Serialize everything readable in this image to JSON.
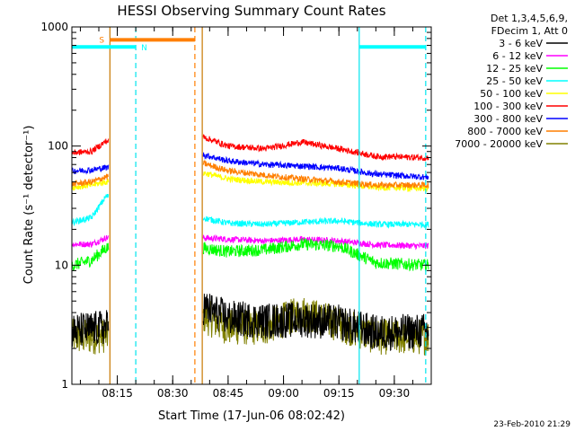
{
  "chart_data": {
    "type": "line",
    "title": "HESSI Observing Summary Count Rates",
    "xlabel": "Start Time (17-Jun-06 08:02:42)",
    "ylabel": "Count Rate (s⁻¹ detector⁻¹)",
    "y_scale": "log",
    "ylim": [
      1,
      1000
    ],
    "xlim": [
      "08:02:42",
      "09:40:00"
    ],
    "x_ticks": [
      "08:15",
      "08:30",
      "08:45",
      "09:00",
      "09:15",
      "09:30"
    ],
    "y_ticks": [
      "1",
      "10",
      "100",
      "1000"
    ],
    "grid": false,
    "legend_placement": "right",
    "legend_header": [
      "Det 1,3,4,5,6,9,",
      "FDecim 1, Att 0"
    ],
    "footer": "23-Feb-2010 21:29",
    "annotations": [
      {
        "text": "S",
        "color": "#ff7f00"
      },
      {
        "text": "N",
        "color": "#00ffff"
      }
    ],
    "markers": {
      "solid_orange_lines": [
        "08:13:00",
        "08:38:00"
      ],
      "dashed_orange_line": "08:36:00",
      "solid_cyan_line": "09:20:30",
      "dashed_cyan_lines": [
        "08:20:00",
        "09:38:30"
      ],
      "saa_bar": {
        "start": "08:13:00",
        "end": "08:36:00",
        "level": 780
      },
      "night_bars": [
        {
          "start": "08:02:42",
          "end": "08:20:00",
          "level": 680
        },
        {
          "start": "09:20:30",
          "end": "09:38:30",
          "level": 680
        }
      ]
    },
    "series": [
      {
        "name": "3 - 6 keV",
        "color": "#000000",
        "x": [
          "08:03",
          "08:08",
          "08:12",
          "08:38",
          "08:45",
          "08:55",
          "09:05",
          "09:15",
          "09:25",
          "09:38"
        ],
        "values": [
          2.8,
          2.9,
          3.0,
          4.5,
          3.6,
          3.4,
          3.5,
          3.3,
          2.7,
          2.8
        ]
      },
      {
        "name": "6 - 12 keV",
        "color": "#ff00ff",
        "x": [
          "08:03",
          "08:08",
          "08:12",
          "08:38",
          "08:45",
          "08:55",
          "09:05",
          "09:15",
          "09:25",
          "09:38"
        ],
        "values": [
          15,
          15,
          17,
          17,
          16.5,
          16,
          16.5,
          16,
          14.8,
          14.5
        ]
      },
      {
        "name": "12 - 25 keV",
        "color": "#00ff00",
        "x": [
          "08:03",
          "08:08",
          "08:12",
          "08:38",
          "08:45",
          "08:55",
          "09:05",
          "09:15",
          "09:25",
          "09:38"
        ],
        "values": [
          10,
          11,
          14,
          14,
          13,
          13.5,
          15,
          14.5,
          10.5,
          10
        ]
      },
      {
        "name": "25 - 50 keV",
        "color": "#00ffff",
        "x": [
          "08:03",
          "08:08",
          "08:12",
          "08:38",
          "08:45",
          "08:55",
          "09:05",
          "09:15",
          "09:25",
          "09:38"
        ],
        "values": [
          23,
          25,
          38,
          25,
          22.5,
          22,
          23,
          23.5,
          22,
          22
        ]
      },
      {
        "name": "50 - 100 keV",
        "color": "#ffff00",
        "x": [
          "08:03",
          "08:08",
          "08:12",
          "08:38",
          "08:45",
          "08:55",
          "09:05",
          "09:15",
          "09:25",
          "09:38"
        ],
        "values": [
          45,
          47,
          50,
          60,
          53,
          50,
          49,
          48,
          45,
          44
        ]
      },
      {
        "name": "100 - 300 keV",
        "color": "#ff0000",
        "x": [
          "08:03",
          "08:08",
          "08:12",
          "08:38",
          "08:45",
          "08:55",
          "09:05",
          "09:15",
          "09:25",
          "09:38"
        ],
        "values": [
          88,
          90,
          110,
          120,
          100,
          95,
          108,
          95,
          82,
          80
        ]
      },
      {
        "name": "300 - 800 keV",
        "color": "#0000ff",
        "x": [
          "08:03",
          "08:08",
          "08:12",
          "08:38",
          "08:45",
          "08:55",
          "09:05",
          "09:15",
          "09:25",
          "09:38"
        ],
        "values": [
          62,
          63,
          66,
          85,
          75,
          70,
          68,
          65,
          58,
          55
        ]
      },
      {
        "name": "800 - 7000 keV",
        "color": "#ff7f00",
        "x": [
          "08:03",
          "08:08",
          "08:12",
          "08:38",
          "08:45",
          "08:55",
          "09:05",
          "09:15",
          "09:25",
          "09:38"
        ],
        "values": [
          48,
          50,
          55,
          72,
          62,
          57,
          53,
          50,
          47,
          47
        ]
      },
      {
        "name": "7000 - 20000 keV",
        "color": "#808000",
        "x": [
          "08:03",
          "08:08",
          "08:12",
          "08:38",
          "08:45",
          "08:55",
          "09:05",
          "09:15",
          "09:25",
          "09:38"
        ],
        "values": [
          2.5,
          2.5,
          2.6,
          3.8,
          3.0,
          3.0,
          4.0,
          3.2,
          2.5,
          2.5
        ]
      }
    ]
  }
}
